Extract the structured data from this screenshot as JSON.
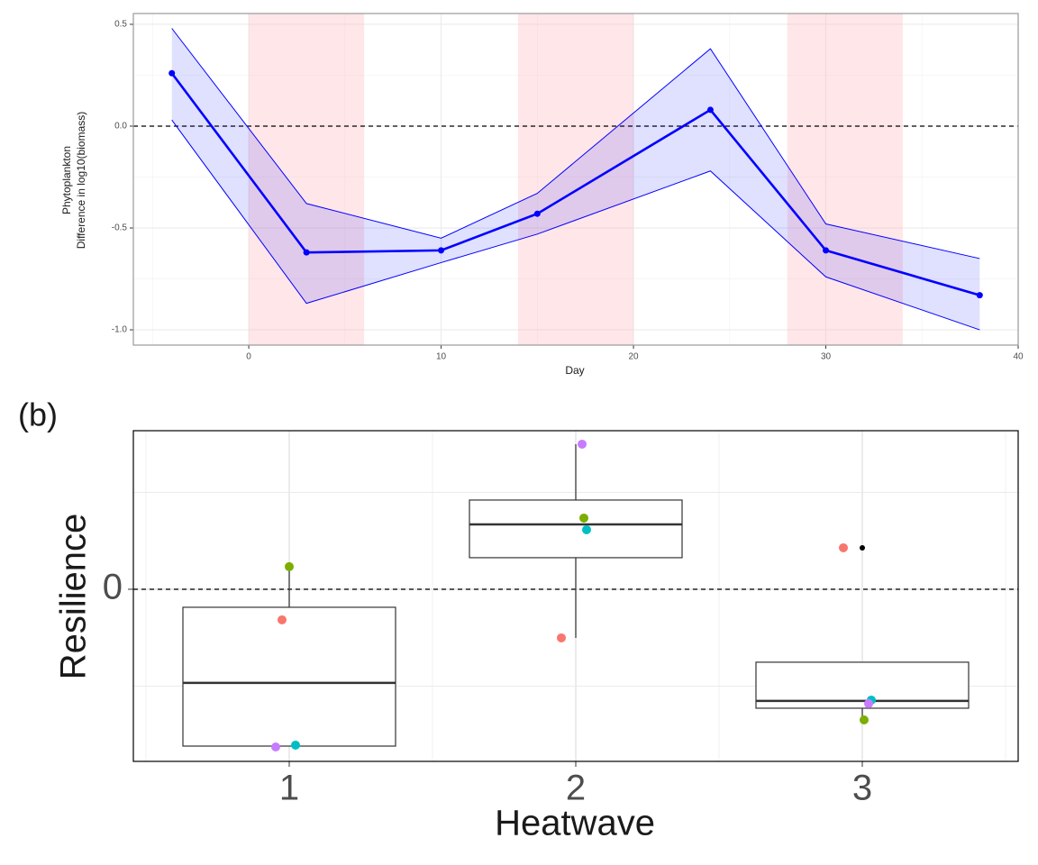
{
  "chart_data": [
    {
      "type": "line",
      "x_label": "Day",
      "y_label": [
        "Phytoplankton",
        "Difference in log10(biomass)"
      ],
      "x": [
        -4,
        3,
        10,
        15,
        24,
        30,
        38
      ],
      "series": [
        {
          "color": "#0000ff",
          "values": [
            0.26,
            -0.62,
            -0.61,
            -0.43,
            0.08,
            -0.61,
            -0.83
          ],
          "upper": [
            0.48,
            -0.38,
            -0.55,
            -0.33,
            0.38,
            -0.48,
            -0.65
          ],
          "lower": [
            0.03,
            -0.87,
            -0.67,
            -0.53,
            -0.22,
            -0.74,
            -1.0
          ]
        }
      ],
      "shaded": [
        [
          0,
          6
        ],
        [
          14,
          20
        ],
        [
          28,
          34
        ]
      ],
      "shade_color": "#ffb6c1",
      "hline": 0,
      "xlim": [
        -6,
        40
      ],
      "ylim": [
        -1.075,
        0.553
      ],
      "xticks": [
        0,
        10,
        20,
        30,
        40
      ],
      "yticks": [
        {
          "value": -1,
          "label": "-1.0"
        },
        {
          "value": -0.5,
          "label": "-0.5"
        },
        {
          "value": 0,
          "label": "0.0"
        },
        {
          "value": 0.5,
          "label": "0.5"
        }
      ],
      "grid": true
    },
    {
      "type": "box",
      "panel_label": "(b)",
      "x_label": "Heatwave",
      "y_label": "Resilience",
      "categories": [
        "1",
        "2",
        "3"
      ],
      "boxes": [
        {
          "low": -1.619,
          "q1": -1.619,
          "median": -0.967,
          "q3": -0.186,
          "high": 0.233
        },
        {
          "low": -0.502,
          "q1": 0.326,
          "median": 0.67,
          "q3": 0.921,
          "high": 1.498
        },
        {
          "low": -1.34,
          "q1": -1.228,
          "median": -1.153,
          "q3": -0.753,
          "high": -0.753
        }
      ],
      "outliers": [
        [],
        [],
        [
          0.428
        ]
      ],
      "series": [
        {
          "color": "#f8766d",
          "values": [
            -0.316,
            -0.502,
            0.428
          ]
        },
        {
          "color": "#7cae00",
          "values": [
            0.233,
            0.735,
            -1.349
          ]
        },
        {
          "color": "#00bfc4",
          "values": [
            -1.609,
            0.614,
            -1.144
          ]
        },
        {
          "color": "#c77cff",
          "values": [
            -1.628,
            1.498,
            -1.181
          ]
        }
      ],
      "hline": 0,
      "ylim": [
        -1.777,
        1.637
      ],
      "yticks": [
        0
      ],
      "yminorticks": [
        -1,
        1
      ],
      "grid": true
    }
  ]
}
